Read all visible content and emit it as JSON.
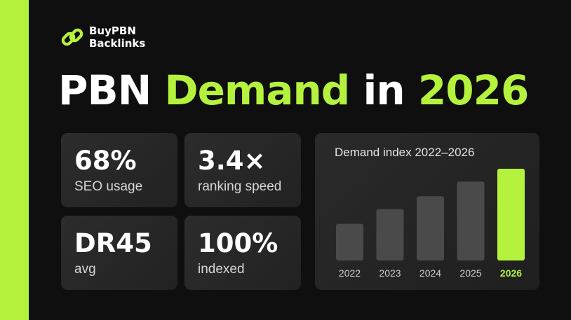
{
  "brand": {
    "line1": "BuyPBN",
    "line2": "Backlinks",
    "icon": "chain-link-icon"
  },
  "headline": {
    "part1": "PBN ",
    "part2": "Demand",
    "part3": " in ",
    "part4": "2026"
  },
  "stats": [
    {
      "value": "68%",
      "label": "SEO usage"
    },
    {
      "value": "3.4×",
      "label": "ranking speed"
    },
    {
      "value": "DR45",
      "label": "avg"
    },
    {
      "value": "100%",
      "label": "indexed"
    }
  ],
  "colors": {
    "accent": "#b5f23d",
    "background": "#0f0f0f",
    "card": "#262626",
    "bar": "#4a4a4a"
  },
  "chart_data": {
    "type": "bar",
    "title": "Demand index 2022–2026",
    "categories": [
      "2022",
      "2023",
      "2024",
      "2025",
      "2026"
    ],
    "values": [
      40,
      56,
      70,
      86,
      100
    ],
    "highlight": "2026",
    "ylim": [
      0,
      100
    ],
    "grid": false,
    "legend": "none"
  }
}
